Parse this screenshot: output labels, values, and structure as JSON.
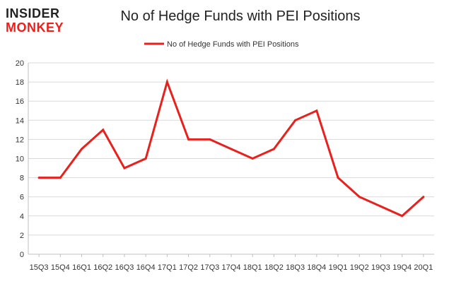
{
  "logo": {
    "line1": "INSIDER",
    "line2": "MONKEY"
  },
  "colors": {
    "series": "#e8211c",
    "logo_red": "#e8211c",
    "logo_dark": "#222222",
    "grid": "#d9d9d9"
  },
  "chart_data": {
    "type": "line",
    "title": "No of Hedge Funds with PEI Positions",
    "xlabel": "",
    "ylabel": "",
    "x": [
      "15Q3",
      "15Q4",
      "16Q1",
      "16Q2",
      "16Q3",
      "16Q4",
      "17Q1",
      "17Q2",
      "17Q3",
      "17Q4",
      "18Q1",
      "18Q2",
      "18Q3",
      "18Q4",
      "19Q1",
      "19Q2",
      "19Q3",
      "19Q4",
      "20Q1"
    ],
    "series": [
      {
        "name": "No of Hedge Funds with PEI Positions",
        "values": [
          8,
          8,
          11,
          13,
          9,
          10,
          18,
          12,
          12,
          11,
          10,
          11,
          14,
          15,
          8,
          6,
          5,
          4,
          6
        ]
      }
    ],
    "ylim": [
      0,
      20
    ],
    "yticks": [
      0,
      2,
      4,
      6,
      8,
      10,
      12,
      14,
      16,
      18,
      20
    ],
    "grid": true,
    "legend": "top-center"
  }
}
